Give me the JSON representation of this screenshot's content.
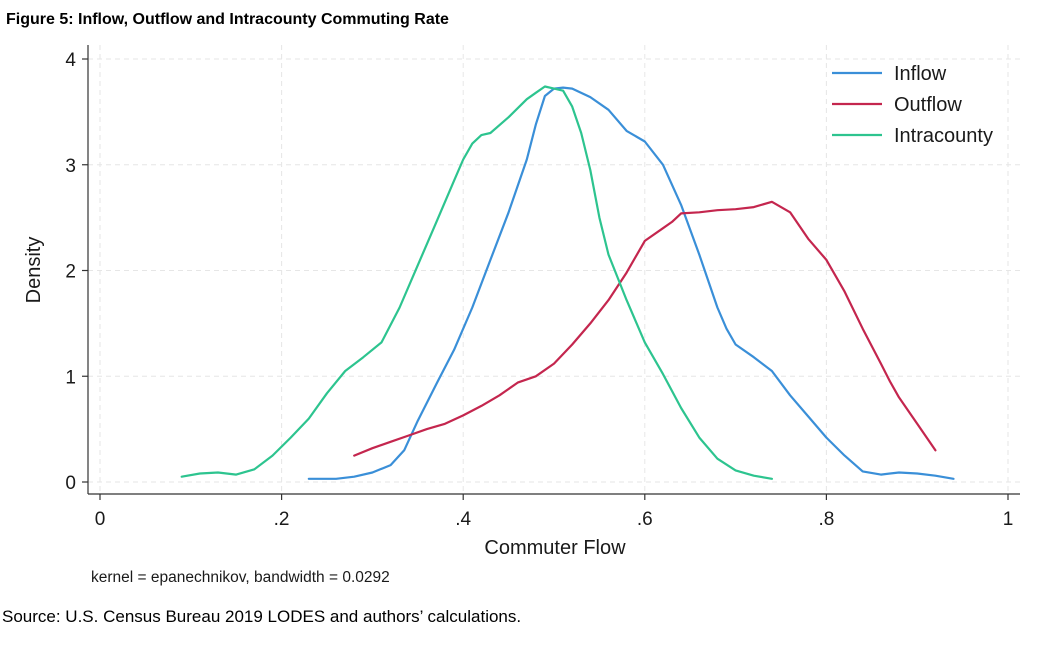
{
  "figure": {
    "title": "Figure 5: Inflow, Outflow and Intracounty Commuting Rate",
    "note": "kernel = epanechnikov, bandwidth = 0.0292",
    "source": "Source: U.S. Census Bureau 2019 LODES and authors’ calculations."
  },
  "chart_data": {
    "type": "line",
    "title": "",
    "xlabel": "Commuter Flow",
    "ylabel": "Density",
    "xlim": [
      0,
      1
    ],
    "ylim": [
      0,
      4
    ],
    "xticks": [
      0,
      0.2,
      0.4,
      0.6,
      0.8,
      1
    ],
    "xtick_labels": [
      "0",
      ".2",
      ".4",
      ".6",
      ".8",
      "1"
    ],
    "yticks": [
      0,
      1,
      2,
      3,
      4
    ],
    "ytick_labels": [
      "0",
      "1",
      "2",
      "3",
      "4"
    ],
    "grid": true,
    "legend_position": "top-right",
    "series": [
      {
        "name": "Inflow",
        "color": "#3A8FD8",
        "points": [
          [
            0.23,
            0.03
          ],
          [
            0.26,
            0.03
          ],
          [
            0.28,
            0.05
          ],
          [
            0.3,
            0.09
          ],
          [
            0.32,
            0.16
          ],
          [
            0.335,
            0.3
          ],
          [
            0.35,
            0.58
          ],
          [
            0.37,
            0.92
          ],
          [
            0.39,
            1.25
          ],
          [
            0.41,
            1.65
          ],
          [
            0.43,
            2.1
          ],
          [
            0.45,
            2.55
          ],
          [
            0.47,
            3.05
          ],
          [
            0.48,
            3.38
          ],
          [
            0.49,
            3.65
          ],
          [
            0.5,
            3.72
          ],
          [
            0.51,
            3.73
          ],
          [
            0.52,
            3.72
          ],
          [
            0.54,
            3.64
          ],
          [
            0.56,
            3.52
          ],
          [
            0.58,
            3.32
          ],
          [
            0.6,
            3.22
          ],
          [
            0.62,
            3.0
          ],
          [
            0.64,
            2.62
          ],
          [
            0.66,
            2.15
          ],
          [
            0.68,
            1.65
          ],
          [
            0.69,
            1.45
          ],
          [
            0.7,
            1.3
          ],
          [
            0.72,
            1.18
          ],
          [
            0.74,
            1.05
          ],
          [
            0.76,
            0.82
          ],
          [
            0.78,
            0.62
          ],
          [
            0.8,
            0.42
          ],
          [
            0.82,
            0.25
          ],
          [
            0.84,
            0.1
          ],
          [
            0.86,
            0.07
          ],
          [
            0.88,
            0.09
          ],
          [
            0.9,
            0.08
          ],
          [
            0.92,
            0.06
          ],
          [
            0.94,
            0.03
          ]
        ]
      },
      {
        "name": "Outflow",
        "color": "#C4264E",
        "points": [
          [
            0.28,
            0.25
          ],
          [
            0.3,
            0.32
          ],
          [
            0.32,
            0.38
          ],
          [
            0.34,
            0.44
          ],
          [
            0.36,
            0.5
          ],
          [
            0.38,
            0.55
          ],
          [
            0.4,
            0.63
          ],
          [
            0.42,
            0.72
          ],
          [
            0.44,
            0.82
          ],
          [
            0.46,
            0.94
          ],
          [
            0.48,
            1.0
          ],
          [
            0.5,
            1.12
          ],
          [
            0.52,
            1.3
          ],
          [
            0.54,
            1.5
          ],
          [
            0.56,
            1.72
          ],
          [
            0.58,
            1.98
          ],
          [
            0.6,
            2.28
          ],
          [
            0.62,
            2.4
          ],
          [
            0.63,
            2.46
          ],
          [
            0.64,
            2.54
          ],
          [
            0.66,
            2.55
          ],
          [
            0.68,
            2.57
          ],
          [
            0.7,
            2.58
          ],
          [
            0.72,
            2.6
          ],
          [
            0.74,
            2.65
          ],
          [
            0.76,
            2.55
          ],
          [
            0.78,
            2.3
          ],
          [
            0.8,
            2.1
          ],
          [
            0.82,
            1.8
          ],
          [
            0.84,
            1.45
          ],
          [
            0.86,
            1.12
          ],
          [
            0.87,
            0.95
          ],
          [
            0.88,
            0.8
          ],
          [
            0.9,
            0.55
          ],
          [
            0.92,
            0.3
          ]
        ]
      },
      {
        "name": "Intracounty",
        "color": "#2DC48F",
        "points": [
          [
            0.09,
            0.05
          ],
          [
            0.11,
            0.08
          ],
          [
            0.13,
            0.09
          ],
          [
            0.15,
            0.07
          ],
          [
            0.17,
            0.12
          ],
          [
            0.19,
            0.25
          ],
          [
            0.21,
            0.42
          ],
          [
            0.23,
            0.6
          ],
          [
            0.25,
            0.84
          ],
          [
            0.27,
            1.05
          ],
          [
            0.29,
            1.18
          ],
          [
            0.31,
            1.32
          ],
          [
            0.33,
            1.65
          ],
          [
            0.35,
            2.05
          ],
          [
            0.37,
            2.45
          ],
          [
            0.39,
            2.85
          ],
          [
            0.4,
            3.05
          ],
          [
            0.41,
            3.2
          ],
          [
            0.42,
            3.28
          ],
          [
            0.43,
            3.3
          ],
          [
            0.45,
            3.45
          ],
          [
            0.47,
            3.62
          ],
          [
            0.48,
            3.68
          ],
          [
            0.49,
            3.74
          ],
          [
            0.5,
            3.72
          ],
          [
            0.51,
            3.7
          ],
          [
            0.52,
            3.55
          ],
          [
            0.53,
            3.3
          ],
          [
            0.54,
            2.95
          ],
          [
            0.55,
            2.5
          ],
          [
            0.56,
            2.15
          ],
          [
            0.58,
            1.72
          ],
          [
            0.6,
            1.32
          ],
          [
            0.62,
            1.02
          ],
          [
            0.64,
            0.7
          ],
          [
            0.66,
            0.42
          ],
          [
            0.68,
            0.22
          ],
          [
            0.7,
            0.11
          ],
          [
            0.72,
            0.06
          ],
          [
            0.74,
            0.03
          ]
        ]
      }
    ]
  }
}
